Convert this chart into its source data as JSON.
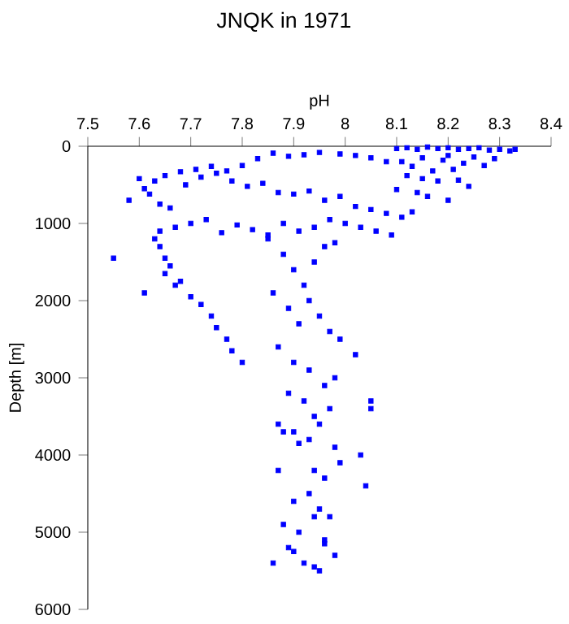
{
  "chart_data": {
    "type": "scatter",
    "title": "JNQK in 1971",
    "xlabel": "pH",
    "ylabel": "Depth [m]",
    "xlim": [
      7.5,
      8.4
    ],
    "xticks": [
      7.5,
      7.6,
      7.7,
      7.8,
      7.9,
      8,
      8.1,
      8.2,
      8.3,
      8.4
    ],
    "ylim": [
      6000,
      0
    ],
    "yticks": [
      0,
      1000,
      2000,
      3000,
      4000,
      5000,
      6000
    ],
    "marker": "square",
    "grid": false,
    "series": [
      {
        "color": "#0000ff",
        "x": [
          8.1,
          8.12,
          8.14,
          8.16,
          8.18,
          8.2,
          8.22,
          8.24,
          8.26,
          8.28,
          8.3,
          8.32,
          8.33,
          8.15,
          8.2,
          8.25,
          8.29,
          8.11,
          8.13,
          8.19,
          8.23,
          8.27,
          8.17,
          8.21,
          8.12,
          8.15,
          8.18,
          8.22,
          8.24,
          8.1,
          8.14,
          8.16,
          8.2,
          7.99,
          8.02,
          8.05,
          8.08,
          7.95,
          7.92,
          7.89,
          7.86,
          7.83,
          7.8,
          7.77,
          7.74,
          7.71,
          7.68,
          7.65,
          7.63,
          7.6,
          7.61,
          7.58,
          7.62,
          7.64,
          7.66,
          7.69,
          7.72,
          7.75,
          7.78,
          7.81,
          7.84,
          7.87,
          7.9,
          7.93,
          7.96,
          7.99,
          8.02,
          8.05,
          8.08,
          8.11,
          8.13,
          7.97,
          8.0,
          8.03,
          8.06,
          8.09,
          7.94,
          7.91,
          7.88,
          7.85,
          7.82,
          7.79,
          7.76,
          7.73,
          7.7,
          7.67,
          7.64,
          7.63,
          7.64,
          7.65,
          7.66,
          7.65,
          7.67,
          7.68,
          7.7,
          7.72,
          7.74,
          7.75,
          7.77,
          7.78,
          7.8,
          7.55,
          7.61,
          7.85,
          7.88,
          7.9,
          7.92,
          7.94,
          7.96,
          7.98,
          7.86,
          7.89,
          7.91,
          7.93,
          7.95,
          7.97,
          7.99,
          8.02,
          7.87,
          7.9,
          7.93,
          7.96,
          7.98,
          7.89,
          7.92,
          7.94,
          7.97,
          8.05,
          8.05,
          7.87,
          7.9,
          7.93,
          7.95,
          7.98,
          8.03,
          7.88,
          7.91,
          7.94,
          7.96,
          7.99,
          8.04,
          7.87,
          7.9,
          7.93,
          7.95,
          7.97,
          7.88,
          7.91,
          7.94,
          7.96,
          7.89,
          7.92,
          7.95,
          7.98,
          7.86,
          7.9,
          7.94,
          7.96
        ],
        "values": [
          30,
          20,
          40,
          10,
          30,
          20,
          40,
          30,
          20,
          50,
          40,
          60,
          40,
          150,
          120,
          140,
          160,
          200,
          260,
          180,
          220,
          250,
          320,
          300,
          380,
          420,
          450,
          440,
          520,
          560,
          600,
          650,
          700,
          100,
          120,
          150,
          200,
          80,
          110,
          130,
          90,
          160,
          250,
          320,
          260,
          300,
          330,
          380,
          450,
          420,
          550,
          700,
          620,
          750,
          800,
          500,
          400,
          350,
          450,
          520,
          480,
          600,
          620,
          580,
          700,
          650,
          780,
          820,
          870,
          920,
          850,
          950,
          1000,
          1050,
          1100,
          1150,
          1050,
          1100,
          1000,
          1150,
          1080,
          1020,
          1120,
          950,
          1000,
          1050,
          1100,
          1200,
          1300,
          1450,
          1550,
          1650,
          1800,
          1750,
          1950,
          2050,
          2200,
          2350,
          2500,
          2650,
          2800,
          1450,
          1900,
          1200,
          1400,
          1600,
          1800,
          1500,
          1300,
          1250,
          1900,
          2100,
          2300,
          2000,
          2200,
          2400,
          2500,
          2700,
          2600,
          2800,
          2900,
          3100,
          3000,
          3200,
          3300,
          3500,
          3400,
          3300,
          3400,
          3600,
          3700,
          3800,
          3600,
          3900,
          4000,
          3700,
          3850,
          4200,
          4300,
          4100,
          4400,
          4200,
          4600,
          4500,
          4700,
          4800,
          4900,
          5000,
          4800,
          5100,
          5200,
          5400,
          5500,
          5300,
          5400,
          5250,
          5450,
          5150
        ]
      }
    ]
  }
}
